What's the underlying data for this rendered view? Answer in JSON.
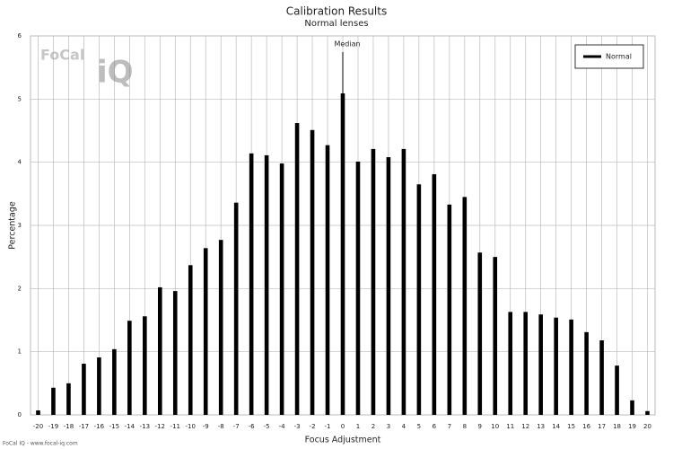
{
  "chart_data": {
    "type": "bar",
    "title": "Calibration Results",
    "subtitle": "Normal lenses",
    "x_label": "Focus Adjustment",
    "y_label": "Percentage",
    "x": [
      -20,
      -19,
      -18,
      -17,
      -16,
      -15,
      -14,
      -13,
      -12,
      -11,
      -10,
      -9,
      -8,
      -7,
      -6,
      -5,
      -4,
      -3,
      -2,
      -1,
      0,
      1,
      2,
      3,
      4,
      5,
      6,
      7,
      8,
      9,
      10,
      11,
      12,
      13,
      14,
      15,
      16,
      17,
      18,
      19,
      20
    ],
    "series": [
      {
        "name": "Normal",
        "color": "#000000",
        "values": [
          0.07,
          0.43,
          0.5,
          0.81,
          0.91,
          1.04,
          1.49,
          1.56,
          2.02,
          1.96,
          2.37,
          2.64,
          2.77,
          3.36,
          4.14,
          4.11,
          3.98,
          4.62,
          4.51,
          4.27,
          5.09,
          4.01,
          4.21,
          4.08,
          4.21,
          3.65,
          3.81,
          3.33,
          3.45,
          2.57,
          2.5,
          1.63,
          1.63,
          1.59,
          1.54,
          1.51,
          1.31,
          1.18,
          0.78,
          0.23,
          0.06
        ]
      }
    ],
    "xlim": [
      -20.5,
      20.5
    ],
    "xticks": [
      -20,
      -19,
      -18,
      -17,
      -16,
      -15,
      -14,
      -13,
      -12,
      -11,
      -10,
      -9,
      -8,
      -7,
      -6,
      -5,
      -4,
      -3,
      -2,
      -1,
      0,
      1,
      2,
      3,
      4,
      5,
      6,
      7,
      8,
      9,
      10,
      11,
      12,
      13,
      14,
      15,
      16,
      17,
      18,
      19,
      20
    ],
    "ylim": [
      0,
      6
    ],
    "yticks": [
      0,
      1,
      2,
      3,
      4,
      5,
      6
    ],
    "grid": true,
    "legend": "upper right",
    "annotations": [
      {
        "text": "Median",
        "x": 0
      }
    ],
    "logo": [
      "FoCal",
      "iQ"
    ],
    "footer": "FoCal IQ - www.focal-iq.com"
  }
}
